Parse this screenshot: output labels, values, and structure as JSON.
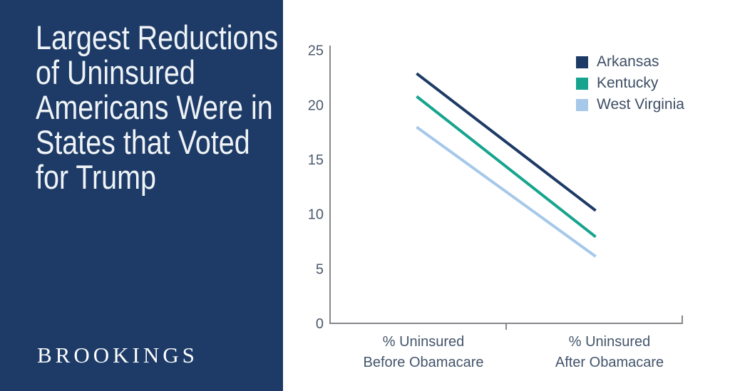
{
  "panel": {
    "bg_color": "#1d3b66",
    "text_color": "#eff3f7",
    "title_lines": [
      "Largest Reductions",
      "of Uninsured",
      "Americans Were in",
      "States that Voted",
      "for Trump"
    ],
    "title": "Largest Reductions of Uninsured Americans Were in States that Voted for Trump",
    "logo": "BROOKINGS",
    "logo_color": "#fdfefe"
  },
  "chart_data": {
    "type": "line",
    "title": "",
    "xlabel": "",
    "ylabel": "",
    "categories": [
      "% Uninsured Before Obamacare",
      "% Uninsured After Obamacare"
    ],
    "category_label_lines": [
      [
        "% Uninsured",
        "Before Obamacare"
      ],
      [
        "% Uninsured",
        "After Obamacare"
      ]
    ],
    "series": [
      {
        "name": "Arkansas",
        "color": "#1d3a66",
        "values": [
          22.8,
          10.4
        ]
      },
      {
        "name": "Kentucky",
        "color": "#17a48e",
        "values": [
          20.7,
          8.0
        ]
      },
      {
        "name": "West Virginia",
        "color": "#a6c8e9",
        "values": [
          17.9,
          6.2
        ]
      }
    ],
    "ylim": [
      0,
      25
    ],
    "yticks": [
      0,
      5,
      10,
      15,
      20,
      25
    ],
    "grid": false,
    "legend_position": "top-right",
    "axis_color": "#85878a",
    "tick_label_color": "#4b5a6d",
    "category_label_color": "#44556b"
  }
}
